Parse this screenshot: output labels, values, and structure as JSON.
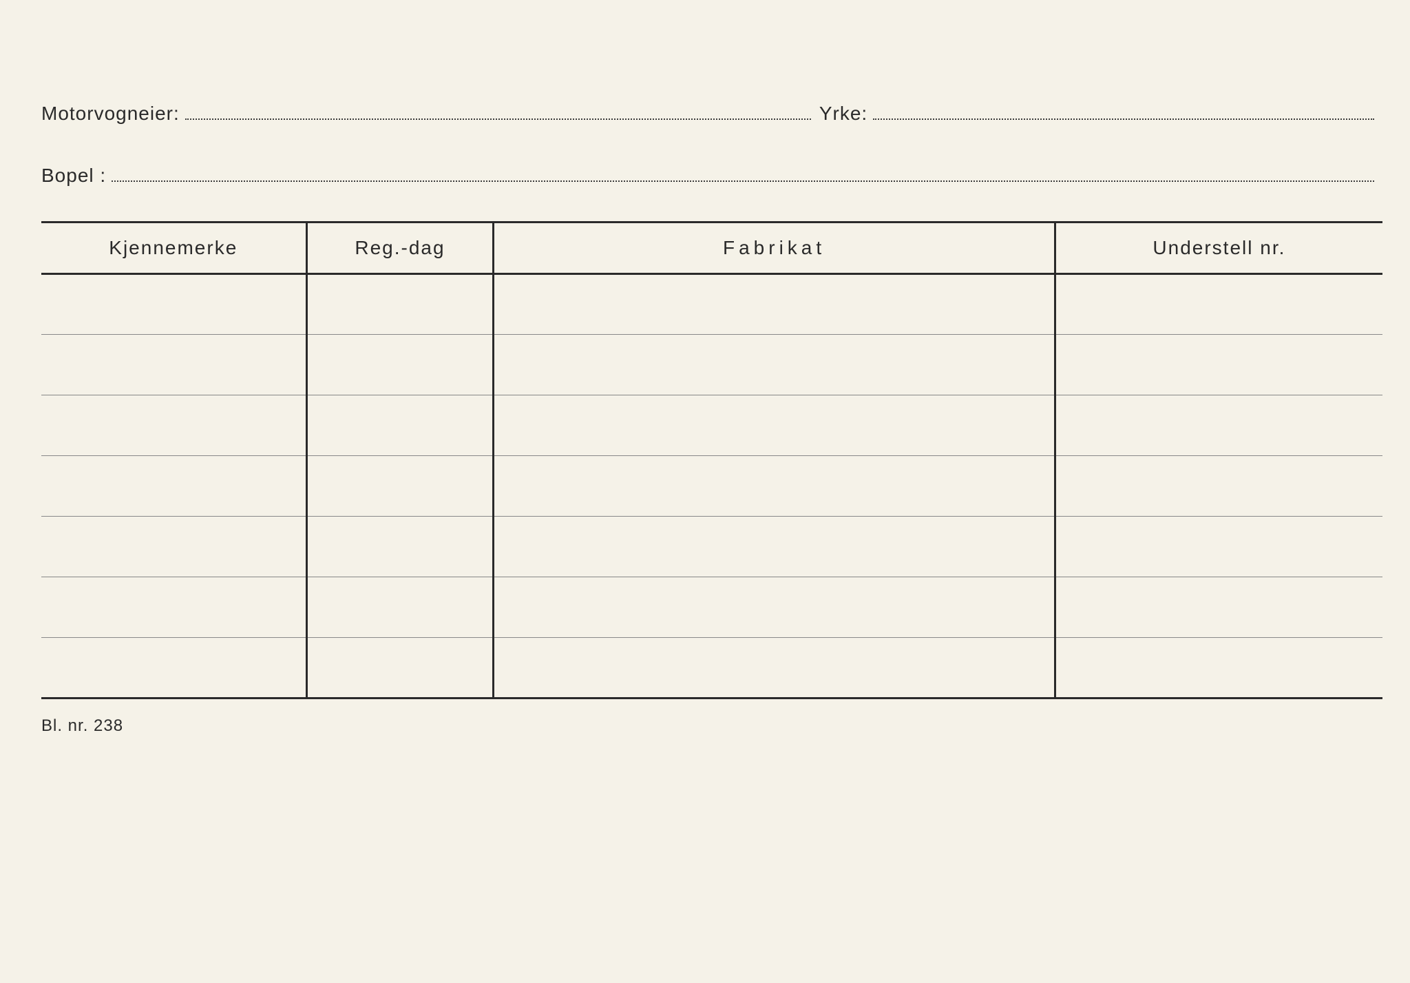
{
  "fields": {
    "owner_label": "Motorvogneier:",
    "profession_label": "Yrke:",
    "residence_label": "Bopel :"
  },
  "table": {
    "columns": [
      {
        "label": "Kjennemerke",
        "width": "17%"
      },
      {
        "label": "Reg.-dag",
        "width": "12%"
      },
      {
        "label": "Fabrikat",
        "width": "36%",
        "letter_spacing": "6px"
      },
      {
        "label": "Understell nr.",
        "width": "21%"
      }
    ],
    "row_count": 7,
    "header_border_color": "#2a2a2a",
    "row_border_color": "#888888"
  },
  "footer": {
    "text": "Bl. nr. 238"
  },
  "styling": {
    "background_color": "#f5f2e8",
    "text_color": "#2a2a2a",
    "font_size_labels": 28,
    "font_size_footer": 24,
    "dotted_line_color": "#3a3a3a"
  }
}
